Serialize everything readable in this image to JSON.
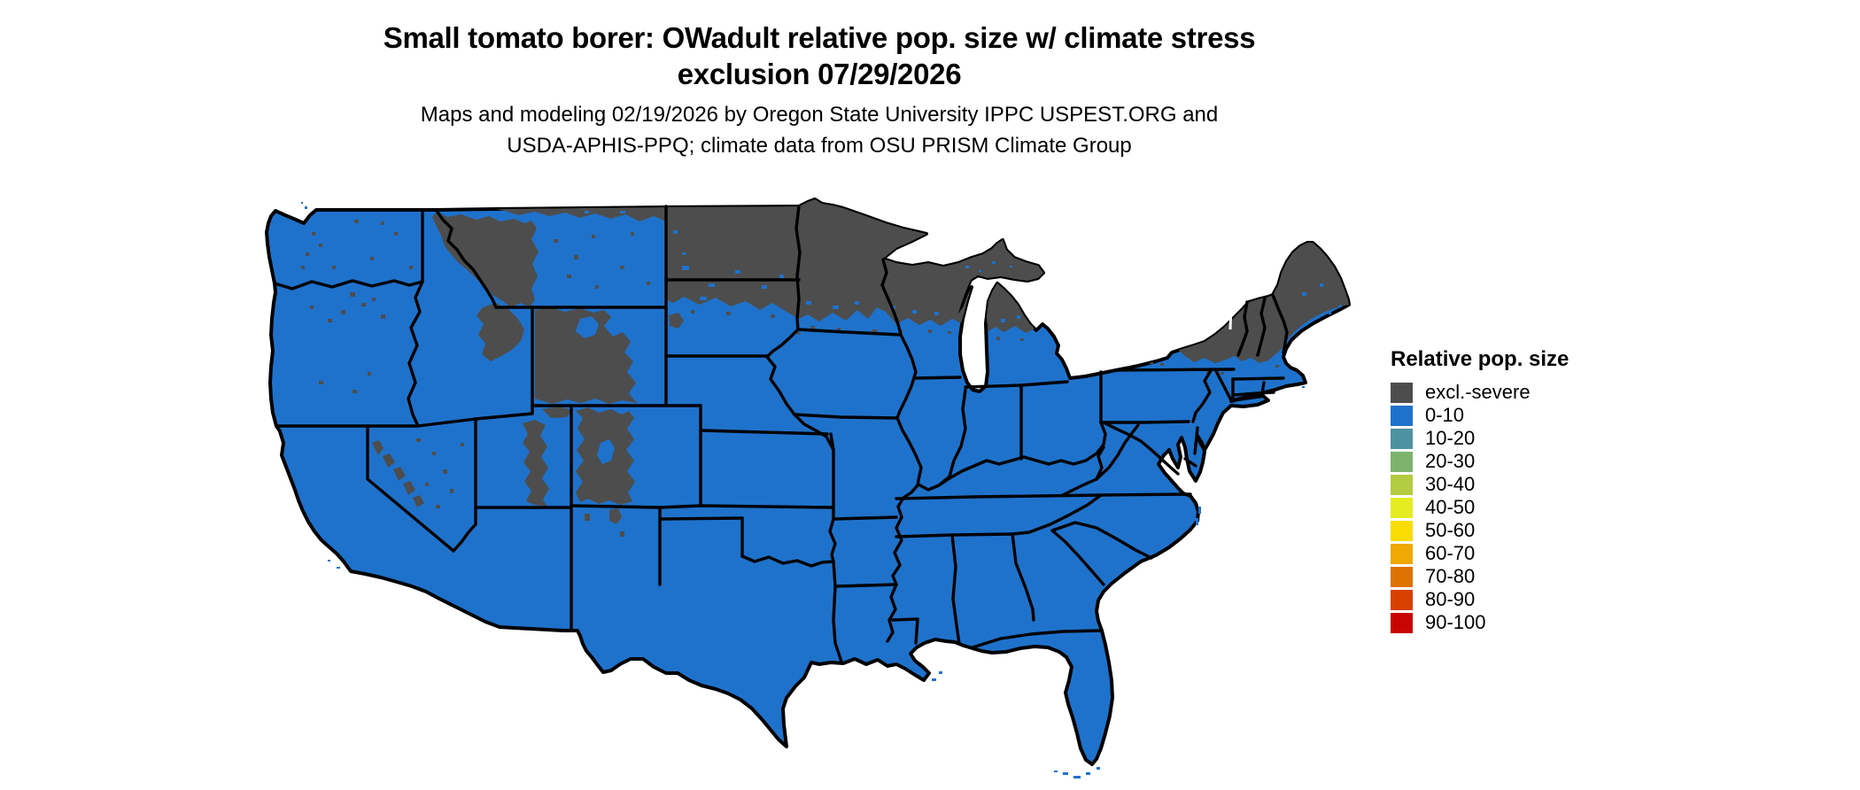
{
  "title": {
    "line1": "Small tomato borer: OWadult relative pop. size w/ climate stress",
    "line2": "exclusion 07/29/2026"
  },
  "subtitle": {
    "line1": "Maps and modeling 02/19/2026 by Oregon State University IPPC USPEST.ORG and",
    "line2": "USDA-APHIS-PPQ; climate data from OSU PRISM Climate Group"
  },
  "map": {
    "region": "Contiguous United States",
    "land_color": "#1F72CB",
    "exclusion_color": "#4D4D4D",
    "border_color": "#000000",
    "water_color": "#FFFFFF",
    "background": "#FFFFFF"
  },
  "legend": {
    "title": "Relative pop. size",
    "items": [
      {
        "label": "excl.-severe",
        "color": "#4D4D4D"
      },
      {
        "label": "0-10",
        "color": "#1F72CB"
      },
      {
        "label": "10-20",
        "color": "#4C92A0"
      },
      {
        "label": "20-30",
        "color": "#7DB36C"
      },
      {
        "label": "30-40",
        "color": "#B4CC41"
      },
      {
        "label": "40-50",
        "color": "#E5EC21"
      },
      {
        "label": "50-60",
        "color": "#F9DC02"
      },
      {
        "label": "60-70",
        "color": "#F0A802"
      },
      {
        "label": "70-80",
        "color": "#DE7203"
      },
      {
        "label": "80-90",
        "color": "#D84002"
      },
      {
        "label": "90-100",
        "color": "#C80502"
      }
    ]
  }
}
